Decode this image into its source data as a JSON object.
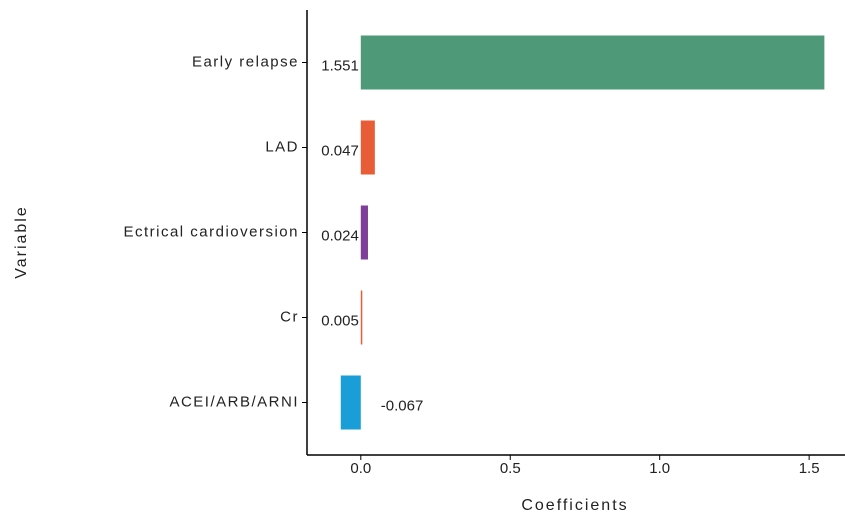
{
  "chart_data": {
    "type": "barh",
    "x_label": "Coefficients",
    "y_label": "Variable",
    "categories": [
      "Early relapse",
      "LAD",
      "Ectrical cardioversion",
      "Cr",
      "ACEI/ARB/ARNI"
    ],
    "values": [
      1.551,
      0.047,
      0.024,
      0.005,
      -0.067
    ],
    "colors": [
      "#4e9a78",
      "#e85d37",
      "#7d3f98",
      "#e85d37",
      "#1a9ed8"
    ],
    "xlim": [
      -0.18,
      1.62
    ],
    "xticks": [
      {
        "value": 0,
        "label": "0.0"
      },
      0.5,
      {
        "value": 1,
        "label": "1.0"
      },
      1.5
    ]
  }
}
